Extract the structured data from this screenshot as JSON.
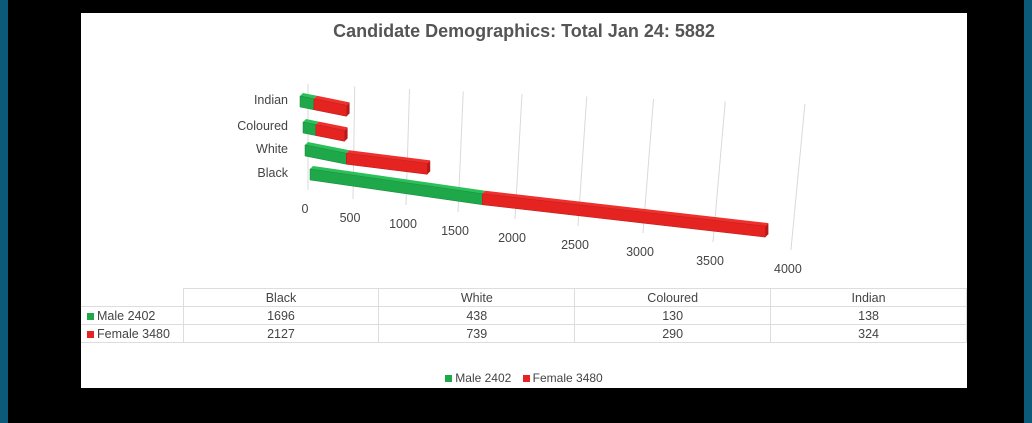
{
  "chart_data": {
    "type": "bar",
    "orientation": "horizontal",
    "stacked": true,
    "three_d": true,
    "title": "Candidate Demographics: Total Jan 24: 5882",
    "categories": [
      "Black",
      "White",
      "Coloured",
      "Indian"
    ],
    "series": [
      {
        "name": "Male 2402",
        "values": [
          1696,
          438,
          130,
          138
        ],
        "color": "#1fa84a"
      },
      {
        "name": "Female 3480",
        "values": [
          2127,
          739,
          290,
          324
        ],
        "color": "#e52421"
      }
    ],
    "xlim": [
      0,
      4000
    ],
    "xticks": [
      "0",
      "500",
      "1000",
      "1500",
      "2000",
      "2500",
      "3000",
      "3500",
      "4000"
    ],
    "grid": true,
    "legend": "bottom",
    "data_table": true
  }
}
